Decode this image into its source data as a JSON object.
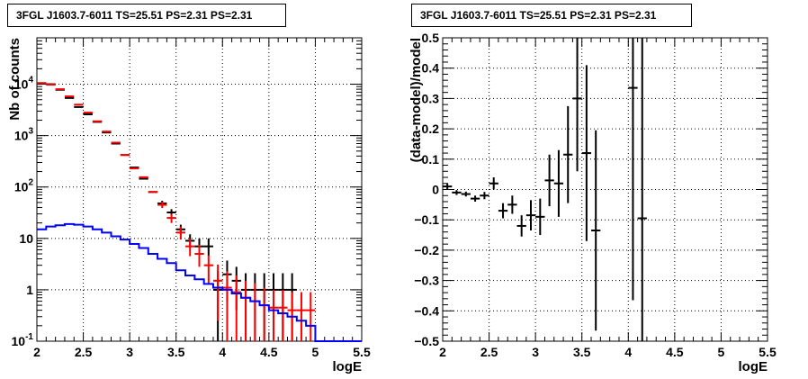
{
  "chart_data": [
    {
      "type": "histogram",
      "title": "3FGL J1603.7-6011 TS=25.51 PS=2.31 PS=2.31",
      "xlabel": "logE",
      "ylabel": "Nb of counts",
      "ylog": true,
      "xlim": [
        2,
        5.5
      ],
      "ylim": [
        0.1,
        80000
      ],
      "grid": true,
      "x_ticks": [
        "2",
        "2.5",
        "3",
        "3.5",
        "4",
        "4.5",
        "5",
        "5.5"
      ],
      "y_ticks": [
        "10^-1",
        "1",
        "10",
        "10^2",
        "10^3",
        "10^4"
      ],
      "y_tick_values": [
        0.1,
        1,
        10,
        100,
        1000,
        10000
      ],
      "series": [
        {
          "color": "#000000",
          "style": "points",
          "x": [
            2.05,
            2.15,
            2.25,
            2.35,
            2.45,
            2.55,
            2.65,
            2.75,
            2.85,
            2.95,
            3.05,
            3.15,
            3.25,
            3.35,
            3.45,
            3.55,
            3.65,
            3.75,
            3.85,
            3.95,
            4.05,
            4.15,
            4.25,
            4.35,
            4.45,
            4.55,
            4.65,
            4.75
          ],
          "y": [
            10500,
            10000,
            7800,
            5400,
            3600,
            2600,
            1850,
            1150,
            700,
            420,
            240,
            145,
            80,
            48,
            32,
            15,
            9,
            7,
            7,
            1,
            2,
            1.5,
            1,
            1,
            1,
            1,
            1,
            1
          ],
          "err_low": [
            0,
            0,
            0,
            0,
            0,
            0,
            0,
            0,
            0,
            0,
            0,
            0,
            0,
            5,
            5,
            3,
            2.5,
            2.2,
            2.4,
            0.9,
            1.4,
            1.1,
            0.9,
            0.9,
            0.9,
            0.9,
            0.9,
            0.9
          ],
          "err_high": [
            0,
            0,
            0,
            0,
            0,
            0,
            0,
            0,
            0,
            0,
            0,
            0,
            0,
            6,
            5,
            3.5,
            3,
            3,
            3,
            1.3,
            1.7,
            1.3,
            1.1,
            1.1,
            1.1,
            1.1,
            1.1,
            1.1
          ]
        },
        {
          "color": "#ff0000",
          "style": "points",
          "x": [
            2.05,
            2.15,
            2.25,
            2.35,
            2.45,
            2.55,
            2.65,
            2.75,
            2.85,
            2.95,
            3.05,
            3.15,
            3.25,
            3.35,
            3.45,
            3.55,
            3.65,
            3.75,
            3.85,
            3.95,
            4.05,
            4.15,
            4.25,
            4.35,
            4.45,
            4.55,
            4.65,
            4.75,
            4.85,
            4.95
          ],
          "y": [
            10500,
            9800,
            8000,
            5800,
            4000,
            2800,
            1900,
            1200,
            730,
            420,
            230,
            155,
            80,
            45,
            25,
            13,
            7,
            5,
            3,
            1.5,
            1.1,
            0.9,
            0.7,
            0.6,
            0.5,
            0.45,
            0.45,
            0.4,
            0.4,
            0.4
          ],
          "err_low": [
            0,
            0,
            0,
            0,
            0,
            0,
            0,
            0,
            0,
            0,
            0,
            0,
            0,
            6,
            5,
            3.5,
            2.5,
            2.2,
            1.7,
            1.25,
            1.0,
            0.8,
            0.62,
            0.53,
            0.45,
            0.4,
            0.4,
            0.36,
            0.36,
            0.36
          ],
          "err_high": [
            0,
            0,
            0,
            0,
            0,
            0,
            0,
            0,
            0,
            0,
            0,
            0,
            0,
            7,
            5,
            4,
            2.8,
            2.5,
            1.7,
            1.6,
            1.2,
            1.0,
            0.8,
            0.75,
            0.6,
            0.55,
            0.55,
            0.5,
            0.5,
            0.5
          ]
        },
        {
          "color": "#0000ff",
          "style": "step",
          "x": [
            2.05,
            2.15,
            2.25,
            2.35,
            2.45,
            2.55,
            2.65,
            2.75,
            2.85,
            2.95,
            3.05,
            3.15,
            3.25,
            3.35,
            3.45,
            3.55,
            3.65,
            3.75,
            3.85,
            3.95,
            4.05,
            4.15,
            4.25,
            4.35,
            4.45,
            4.55,
            4.65,
            4.75,
            4.85,
            4.95,
            5.05,
            5.15,
            5.25,
            5.35,
            5.45
          ],
          "y": [
            15,
            17,
            18,
            19,
            18.5,
            17,
            15,
            13,
            11,
            9.5,
            7.8,
            6.5,
            5,
            4,
            3.3,
            2.4,
            1.9,
            1.6,
            1.3,
            1.1,
            1,
            0.85,
            0.7,
            0.6,
            0.5,
            0.4,
            0.35,
            0.3,
            0.25,
            0.2,
            0.1,
            0.1,
            0.1,
            0.1,
            0.1
          ]
        }
      ]
    },
    {
      "type": "scatter",
      "title": "3FGL J1603.7-6011 TS=25.51 PS=2.31 PS=2.31",
      "xlabel": "logE",
      "ylabel": "(data-model)/model",
      "xlim": [
        2,
        5.5
      ],
      "ylim": [
        -0.5,
        0.5
      ],
      "grid": true,
      "x_ticks": [
        "2",
        "2.5",
        "3",
        "3.5",
        "4",
        "4.5",
        "5",
        "5.5"
      ],
      "y_ticks": [
        "−0.5",
        "−0.4",
        "−0.3",
        "−0.2",
        "−0.1",
        "0",
        "0.1",
        "0.2",
        "0.3",
        "0.4",
        "0.5"
      ],
      "y_tick_values": [
        -0.5,
        -0.4,
        -0.3,
        -0.2,
        -0.1,
        0,
        0.1,
        0.2,
        0.3,
        0.4,
        0.5
      ],
      "series": [
        {
          "color": "#000000",
          "style": "points",
          "x": [
            2.05,
            2.15,
            2.25,
            2.35,
            2.45,
            2.55,
            2.65,
            2.75,
            2.85,
            2.95,
            3.05,
            3.15,
            3.25,
            3.35,
            3.45,
            3.55,
            3.65,
            4.05,
            4.15
          ],
          "y": [
            0.01,
            -0.01,
            -0.015,
            -0.03,
            -0.02,
            0.02,
            -0.07,
            -0.05,
            -0.12,
            -0.085,
            -0.09,
            0.03,
            0.02,
            0.115,
            0.3,
            0.12,
            -0.135,
            0.335,
            -0.095
          ],
          "err": [
            0.01,
            0.008,
            0.008,
            0.01,
            0.012,
            0.02,
            0.025,
            0.03,
            0.035,
            0.05,
            0.06,
            0.085,
            0.11,
            0.16,
            0.24,
            0.29,
            0.33,
            0.7,
            0.7
          ]
        }
      ]
    }
  ]
}
